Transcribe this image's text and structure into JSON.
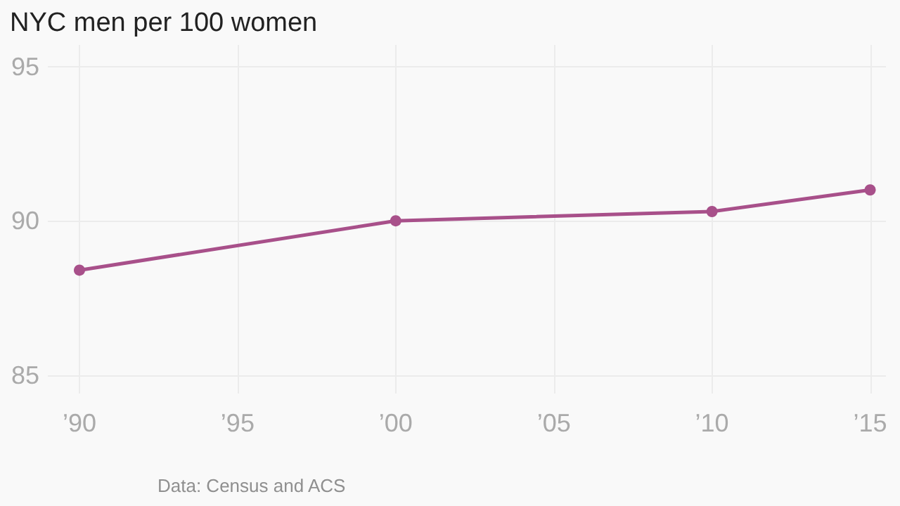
{
  "chart_data": {
    "type": "line",
    "title": "NYC men per 100 women",
    "x": [
      1990,
      2000,
      2010,
      2015
    ],
    "series": [
      {
        "color": "#a8508a",
        "values": [
          88.4,
          90.0,
          90.3,
          91.0
        ]
      }
    ],
    "xlim": [
      1989,
      2015.5
    ],
    "xticks": [
      {
        "value": 1990,
        "label": "’90"
      },
      {
        "value": 1995,
        "label": "’95"
      },
      {
        "value": 2000,
        "label": "’00"
      },
      {
        "value": 2005,
        "label": "’05"
      },
      {
        "value": 2010,
        "label": "’10"
      },
      {
        "value": 2015,
        "label": "’15"
      }
    ],
    "ylim": [
      84.4,
      95.7
    ],
    "yticks": [
      85,
      90,
      95
    ],
    "grid": true,
    "marker": "circle",
    "line_style": "solid",
    "annotations": [
      "Data: Census and ACS"
    ]
  }
}
